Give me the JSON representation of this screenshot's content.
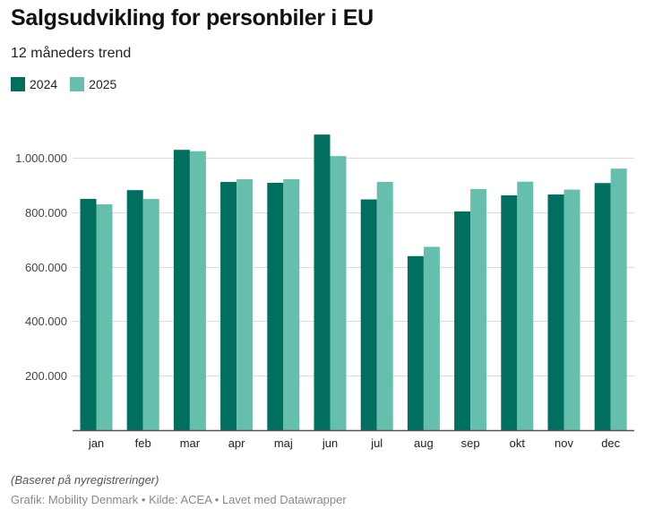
{
  "header": {
    "title": "Salgsudvikling for personbiler i EU",
    "subtitle": "12 måneders trend"
  },
  "legend": [
    {
      "label": "2024",
      "color": "#006F5F"
    },
    {
      "label": "2025",
      "color": "#66BFAC"
    }
  ],
  "footer": {
    "note": "(Baseret på nyregistreringer)",
    "credits": "Grafik: Mobility Denmark • Kilde: ACEA • Lavet med Datawrapper"
  },
  "chart_data": {
    "type": "bar",
    "title": "Salgsudvikling for personbiler i EU",
    "subtitle": "12 måneders trend",
    "xlabel": "",
    "ylabel": "",
    "categories": [
      "jan",
      "feb",
      "mar",
      "apr",
      "maj",
      "jun",
      "jul",
      "aug",
      "sep",
      "okt",
      "nov",
      "dec"
    ],
    "series": [
      {
        "name": "2024",
        "color": "#006F5F",
        "values": [
          849000,
          881000,
          1029000,
          911000,
          908000,
          1085000,
          847000,
          639000,
          803000,
          862000,
          865000,
          907000
        ]
      },
      {
        "name": "2025",
        "color": "#66BFAC",
        "values": [
          829000,
          849000,
          1024000,
          921000,
          921000,
          1006000,
          911000,
          673000,
          885000,
          912000,
          883000,
          960000
        ]
      }
    ],
    "ylim": [
      0,
      1000000
    ],
    "yticks": [
      200000,
      400000,
      600000,
      800000,
      1000000
    ],
    "ytick_labels": [
      "200.000",
      "400.000",
      "600.000",
      "800.000",
      "1.000.000"
    ],
    "grid": true,
    "legend_position": "top-left"
  }
}
